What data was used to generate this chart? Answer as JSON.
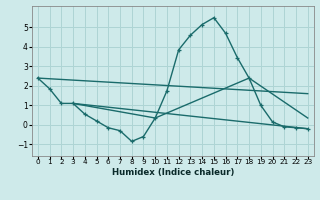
{
  "xlabel": "Humidex (Indice chaleur)",
  "xlim": [
    -0.5,
    23.5
  ],
  "ylim": [
    -1.6,
    6.1
  ],
  "yticks": [
    -1,
    0,
    1,
    2,
    3,
    4,
    5
  ],
  "xticks": [
    0,
    1,
    2,
    3,
    4,
    5,
    6,
    7,
    8,
    9,
    10,
    11,
    12,
    13,
    14,
    15,
    16,
    17,
    18,
    19,
    20,
    21,
    22,
    23
  ],
  "background_color": "#ceeaea",
  "grid_color": "#aed4d4",
  "line_color": "#1a6b6b",
  "line1_x": [
    0,
    1,
    2,
    3,
    4,
    5,
    6,
    7,
    8,
    9,
    10,
    11,
    12,
    13,
    14,
    15,
    16,
    17,
    18,
    19,
    20,
    21,
    22,
    23
  ],
  "line1_y": [
    2.4,
    1.85,
    1.1,
    1.1,
    0.55,
    0.2,
    -0.15,
    -0.3,
    -0.85,
    -0.6,
    0.35,
    1.75,
    3.85,
    4.6,
    5.15,
    5.5,
    4.7,
    3.45,
    2.4,
    1.0,
    0.15,
    -0.1,
    -0.15,
    -0.2
  ],
  "line2_x": [
    0,
    23
  ],
  "line2_y": [
    2.4,
    1.6
  ],
  "line3_x": [
    3,
    23
  ],
  "line3_y": [
    1.1,
    -0.2
  ],
  "line4_x": [
    3,
    10,
    18,
    23
  ],
  "line4_y": [
    1.1,
    0.35,
    2.4,
    0.35
  ]
}
